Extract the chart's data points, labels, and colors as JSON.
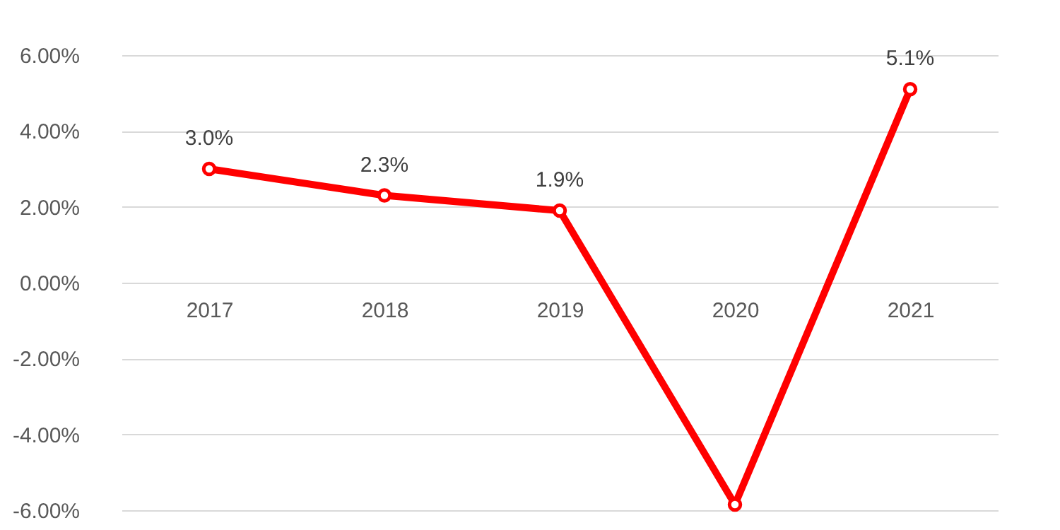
{
  "chart_data": {
    "type": "line",
    "categories": [
      "2017",
      "2018",
      "2019",
      "2020",
      "2021"
    ],
    "series": [
      {
        "color": "#ff0000",
        "values": [
          3.0,
          2.3,
          1.9,
          -5.85,
          5.1
        ],
        "value_labels": [
          "3.0%",
          "2.3%",
          "1.9%",
          null,
          "5.1%"
        ]
      }
    ],
    "ylim": [
      -6,
      6
    ],
    "yticks": [
      {
        "value": -6,
        "label": "-6.00%"
      },
      {
        "value": -4,
        "label": "-4.00%"
      },
      {
        "value": -2,
        "label": "-2.00%"
      },
      {
        "value": 0,
        "label": "0.00%"
      },
      {
        "value": 2,
        "label": "2.00%"
      },
      {
        "value": 4,
        "label": "4.00%"
      },
      {
        "value": 6,
        "label": "6.00%"
      }
    ],
    "grid": "y",
    "marker": "circle",
    "line_style": "solid"
  }
}
